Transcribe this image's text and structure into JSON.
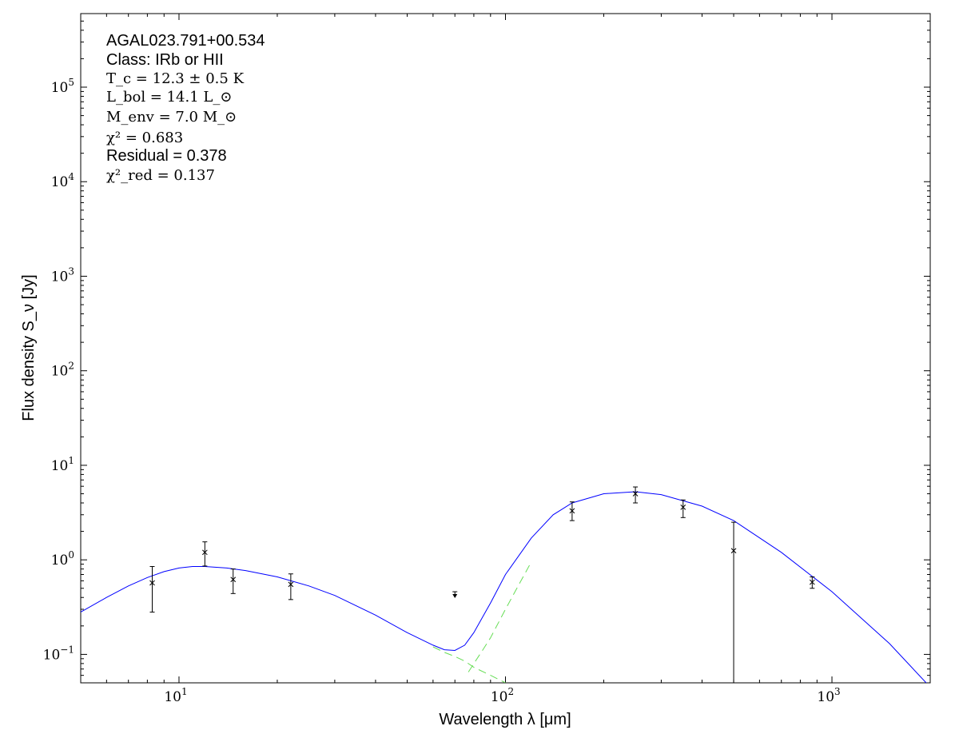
{
  "chart_data": {
    "type": "line",
    "xscale": "log",
    "yscale": "log",
    "xlim": [
      5,
      2000
    ],
    "ylim": [
      0.05,
      600000
    ],
    "grid": false,
    "xlabel": "Wavelength λ [μm]",
    "ylabel": "Flux density S_ν [Jy]",
    "x_tick_labels": [
      {
        "value": 10,
        "base": "10",
        "exp": "1"
      },
      {
        "value": 100,
        "base": "10",
        "exp": "2"
      },
      {
        "value": 1000,
        "base": "10",
        "exp": "3"
      }
    ],
    "y_tick_labels": [
      {
        "value": 0.1,
        "base": "10",
        "exp": "−1"
      },
      {
        "value": 1,
        "base": "10",
        "exp": "0"
      },
      {
        "value": 10,
        "base": "10",
        "exp": "1"
      },
      {
        "value": 100,
        "base": "10",
        "exp": "2"
      },
      {
        "value": 1000,
        "base": "10",
        "exp": "3"
      },
      {
        "value": 10000,
        "base": "10",
        "exp": "4"
      },
      {
        "value": 100000,
        "base": "10",
        "exp": "5"
      }
    ],
    "annotations": {
      "source": "AGAL023.791+00.534",
      "class": "Class: IRb or HII",
      "tc": "T_c = 12.3 ± 0.5 K",
      "lbol": "L_bol = 14.1 L_⊙",
      "menv": "M_env = 7.0 M_⊙",
      "chi2": "χ² = 0.683",
      "residual": "Residual = 0.378",
      "chi2_red": "χ²_red = 0.137"
    },
    "series": [
      {
        "style": "solid",
        "color": "#0000ff",
        "x": [
          5,
          6,
          7,
          8,
          9,
          10,
          11,
          12,
          14,
          16,
          20,
          25,
          30,
          40,
          50,
          60,
          65,
          70,
          75,
          80,
          90,
          100,
          120,
          140,
          160,
          200,
          250,
          300,
          400,
          500,
          700,
          1000,
          1500,
          2000
        ],
        "y": [
          0.28,
          0.4,
          0.53,
          0.65,
          0.75,
          0.82,
          0.85,
          0.85,
          0.82,
          0.77,
          0.66,
          0.53,
          0.42,
          0.26,
          0.17,
          0.125,
          0.112,
          0.11,
          0.125,
          0.17,
          0.35,
          0.7,
          1.7,
          3.0,
          4.0,
          5.0,
          5.25,
          4.9,
          3.7,
          2.6,
          1.2,
          0.46,
          0.13,
          0.045
        ]
      },
      {
        "style": "dashed",
        "color": "#66dd55",
        "x": [
          60,
          65,
          70,
          75,
          80,
          90,
          100
        ],
        "y": [
          0.12,
          0.105,
          0.095,
          0.085,
          0.073,
          0.06,
          0.05
        ]
      },
      {
        "style": "dashed",
        "color": "#66dd55",
        "x": [
          77,
          80,
          85,
          90,
          100,
          110,
          120
        ],
        "y": [
          0.065,
          0.08,
          0.11,
          0.15,
          0.3,
          0.55,
          0.95
        ]
      }
    ],
    "points": [
      {
        "x": 8.28,
        "y": 0.57,
        "err_low": 0.28,
        "err_high": 0.85
      },
      {
        "x": 12,
        "y": 1.2,
        "err_low": 0.86,
        "err_high": 1.55
      },
      {
        "x": 14.65,
        "y": 0.62,
        "err_low": 0.44,
        "err_high": 0.8
      },
      {
        "x": 22,
        "y": 0.55,
        "err_low": 0.38,
        "err_high": 0.71
      },
      {
        "x": 70,
        "y": 0.41,
        "upper_limit": true,
        "err_high": 0.46
      },
      {
        "x": 160,
        "y": 3.3,
        "err_low": 2.6,
        "err_high": 4.1
      },
      {
        "x": 250,
        "y": 5.0,
        "err_low": 4.0,
        "err_high": 5.9
      },
      {
        "x": 350,
        "y": 3.6,
        "err_low": 2.8,
        "err_high": 4.3
      },
      {
        "x": 500,
        "y": 1.25,
        "err_low": 0.05,
        "err_high": 2.5
      },
      {
        "x": 870,
        "y": 0.58,
        "err_low": 0.5,
        "err_high": 0.66
      }
    ]
  }
}
